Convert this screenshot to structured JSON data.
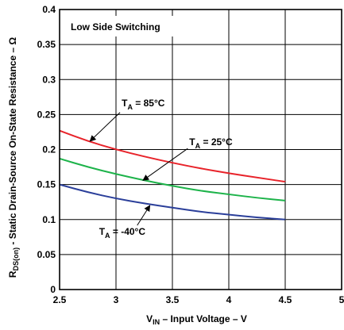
{
  "chart_data": {
    "type": "line",
    "title": "Low Side Switching",
    "xlabel": {
      "main": "V",
      "sub": "IN",
      "rest": " – Input Voltage – V"
    },
    "ylabel": {
      "main": "R",
      "sub": "DS(on)",
      "rest": " - Static Drain-Source On-State Resistance – Ω"
    },
    "xlim": [
      2.5,
      5
    ],
    "ylim": [
      0,
      0.4
    ],
    "x_ticks": [
      {
        "value": 2.5,
        "label": "2.5"
      },
      {
        "value": 3,
        "label": "3"
      },
      {
        "value": 3.5,
        "label": "3.5"
      },
      {
        "value": 4,
        "label": "4"
      },
      {
        "value": 4.5,
        "label": "4.5"
      },
      {
        "value": 5,
        "label": "5"
      }
    ],
    "y_ticks": [
      {
        "value": 0,
        "label": "0"
      },
      {
        "value": 0.05,
        "label": "0.05"
      },
      {
        "value": 0.1,
        "label": "0.1"
      },
      {
        "value": 0.15,
        "label": "0.15"
      },
      {
        "value": 0.2,
        "label": "0.2"
      },
      {
        "value": 0.25,
        "label": "0.25"
      },
      {
        "value": 0.3,
        "label": "0.3"
      },
      {
        "value": 0.35,
        "label": "0.35"
      },
      {
        "value": 0.4,
        "label": "0.4"
      }
    ],
    "grid": true,
    "series": [
      {
        "name": "T_A = 85°C",
        "label": {
          "main": "T",
          "sub": "A",
          "rest": " = 85°C"
        },
        "color": "#e8232a",
        "x": [
          2.5,
          2.75,
          3.0,
          3.25,
          3.5,
          3.75,
          4.0,
          4.25,
          4.5
        ],
        "y": [
          0.227,
          0.212,
          0.2,
          0.19,
          0.181,
          0.173,
          0.166,
          0.16,
          0.154
        ]
      },
      {
        "name": "T_A = 25°C",
        "label": {
          "main": "T",
          "sub": "A",
          "rest": " = 25°C"
        },
        "color": "#1db34a",
        "x": [
          2.5,
          2.75,
          3.0,
          3.25,
          3.5,
          3.75,
          4.0,
          4.25,
          4.5
        ],
        "y": [
          0.187,
          0.175,
          0.165,
          0.156,
          0.148,
          0.141,
          0.136,
          0.131,
          0.127
        ]
      },
      {
        "name": "T_A = -40°C",
        "label": {
          "main": "T",
          "sub": "A",
          "rest": " = -40°C"
        },
        "color": "#2b3f9a",
        "x": [
          2.5,
          2.75,
          3.0,
          3.25,
          3.5,
          3.75,
          4.0,
          4.25,
          4.5
        ],
        "y": [
          0.15,
          0.139,
          0.13,
          0.123,
          0.117,
          0.111,
          0.107,
          0.103,
          0.1
        ]
      }
    ],
    "annotations": [
      {
        "series": 0,
        "text_at": [
          3.05,
          0.262
        ],
        "arrow_to": [
          2.77,
          0.212
        ]
      },
      {
        "series": 1,
        "text_at": [
          3.65,
          0.206
        ],
        "arrow_to": [
          3.24,
          0.156
        ]
      },
      {
        "series": 2,
        "text_at": [
          2.85,
          0.078
        ],
        "arrow_to": [
          3.3,
          0.12
        ]
      }
    ]
  }
}
